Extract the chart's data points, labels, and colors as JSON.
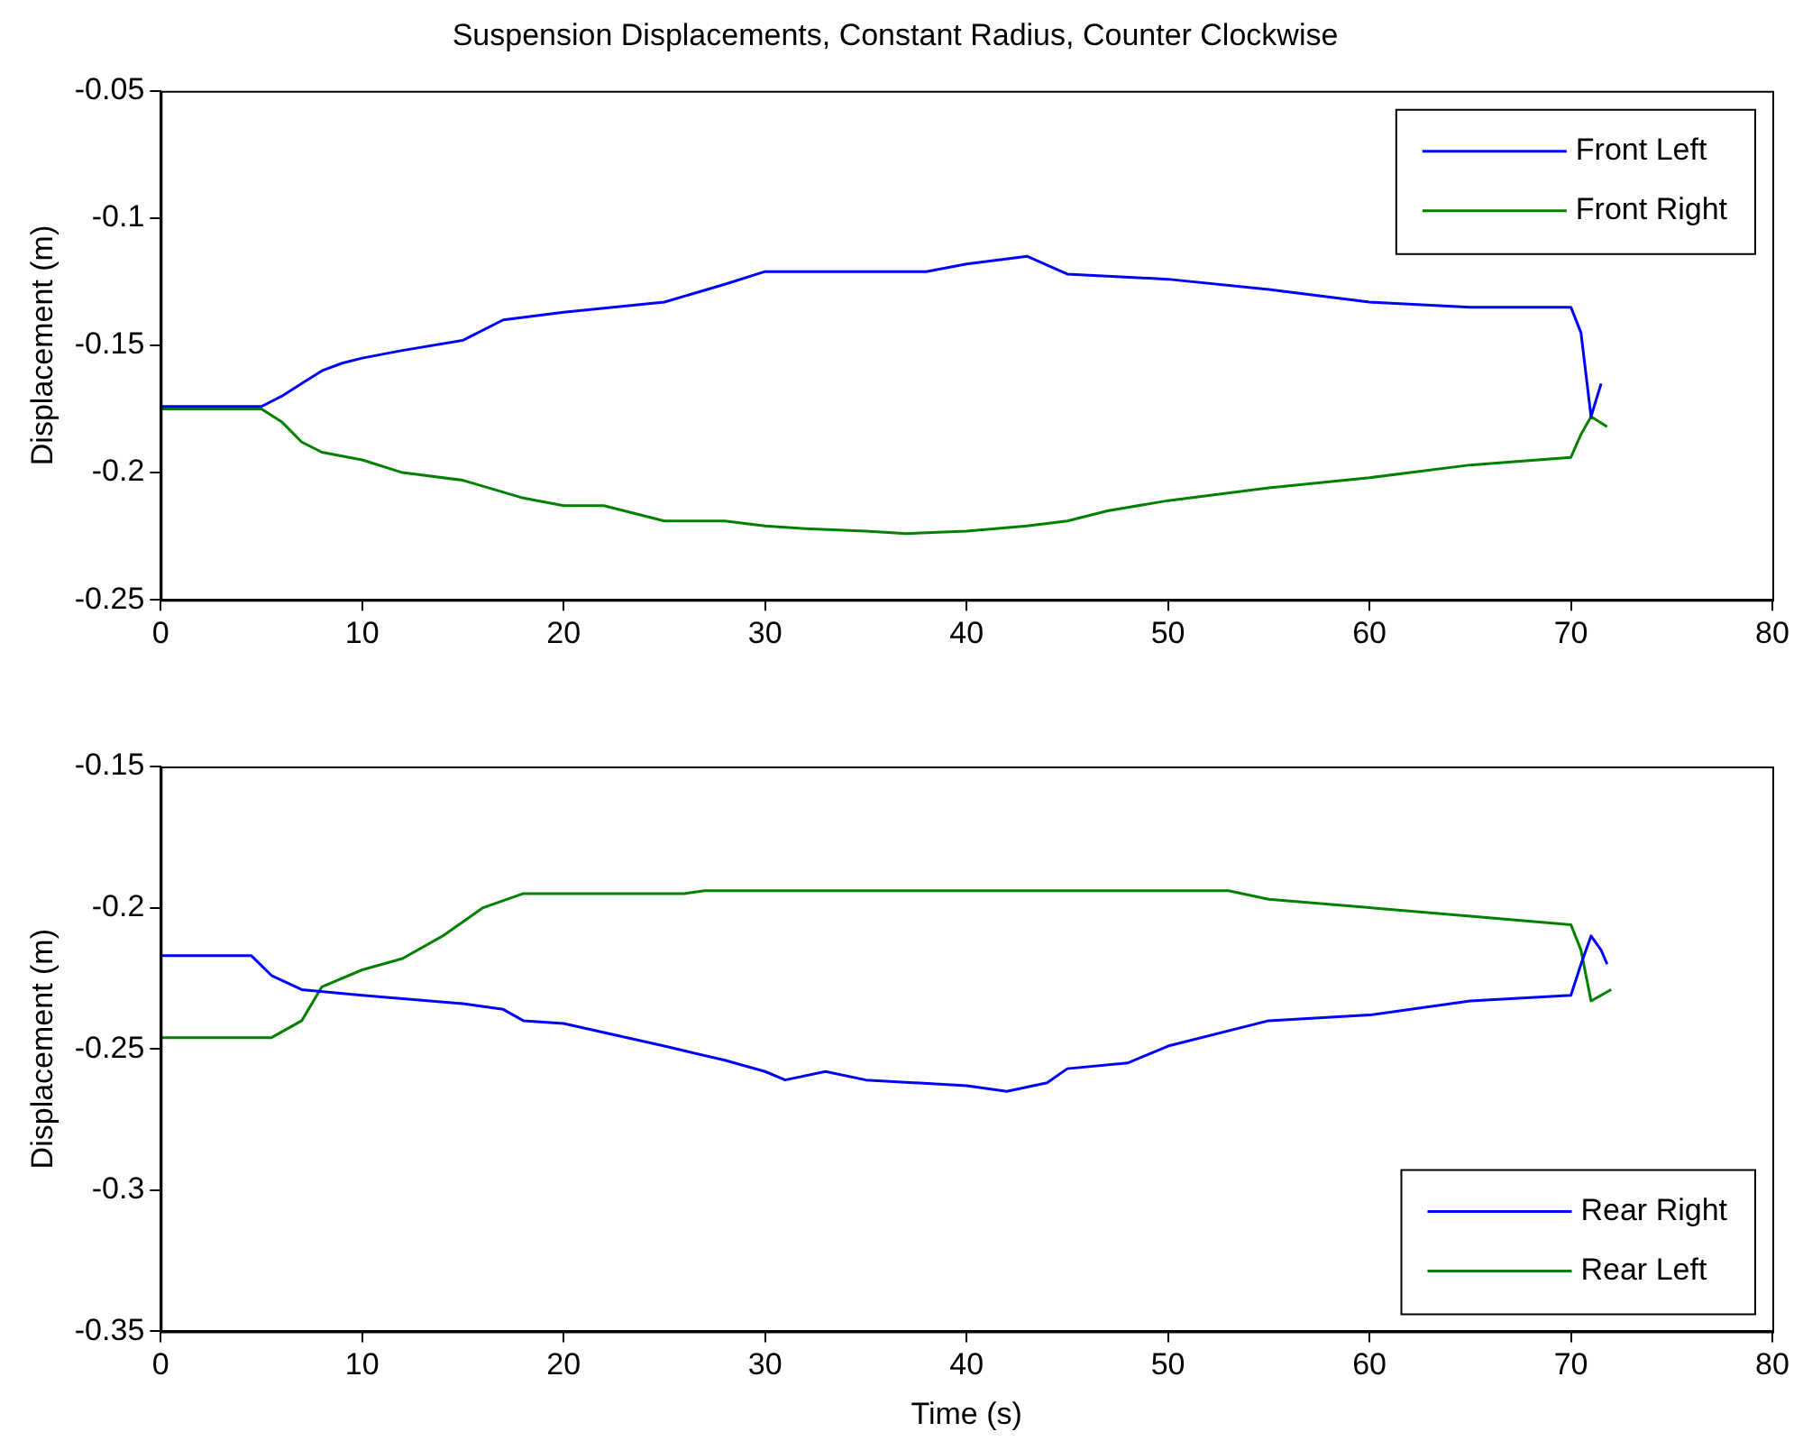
{
  "chart_data": [
    {
      "type": "line",
      "title": "Suspension Displacements, Constant Radius, Counter Clockwise",
      "ylabel": "Displacement (m)",
      "xlim": [
        0,
        80
      ],
      "xticks": [
        0,
        10,
        20,
        30,
        40,
        50,
        60,
        70,
        80
      ],
      "ylim": [
        -0.25,
        -0.05
      ],
      "yticks": [
        -0.25,
        -0.2,
        -0.15,
        -0.1,
        -0.05
      ],
      "grid": false,
      "legend": "top right",
      "series": [
        {
          "name": "Front Left",
          "color": "#0000ff",
          "x": [
            0,
            5,
            6,
            7,
            8,
            9,
            10,
            12,
            15,
            17,
            20,
            25,
            28,
            30,
            38,
            40,
            43,
            45,
            50,
            55,
            60,
            65,
            70,
            70.5,
            71,
            71.5
          ],
          "values": [
            -0.174,
            -0.174,
            -0.17,
            -0.165,
            -0.16,
            -0.157,
            -0.155,
            -0.152,
            -0.148,
            -0.14,
            -0.137,
            -0.133,
            -0.126,
            -0.121,
            -0.121,
            -0.118,
            -0.115,
            -0.122,
            -0.124,
            -0.128,
            -0.133,
            -0.135,
            -0.135,
            -0.145,
            -0.178,
            -0.165
          ]
        },
        {
          "name": "Front Right",
          "color": "#008000",
          "x": [
            0,
            5,
            6,
            7,
            8,
            10,
            12,
            15,
            18,
            20,
            22,
            25,
            28,
            30,
            32,
            35,
            37,
            40,
            43,
            45,
            47,
            50,
            55,
            60,
            65,
            70,
            70.5,
            71,
            71.8
          ],
          "values": [
            -0.175,
            -0.175,
            -0.18,
            -0.188,
            -0.192,
            -0.195,
            -0.2,
            -0.203,
            -0.21,
            -0.213,
            -0.213,
            -0.219,
            -0.219,
            -0.221,
            -0.222,
            -0.223,
            -0.224,
            -0.223,
            -0.221,
            -0.219,
            -0.215,
            -0.211,
            -0.206,
            -0.202,
            -0.197,
            -0.194,
            -0.185,
            -0.178,
            -0.182
          ]
        }
      ]
    },
    {
      "type": "line",
      "xlabel": "Time (s)",
      "ylabel": "Displacement (m)",
      "xlim": [
        0,
        80
      ],
      "xticks": [
        0,
        10,
        20,
        30,
        40,
        50,
        60,
        70,
        80
      ],
      "ylim": [
        -0.35,
        -0.15
      ],
      "yticks": [
        -0.35,
        -0.3,
        -0.25,
        -0.2,
        -0.15
      ],
      "grid": false,
      "legend": "bottom right",
      "series": [
        {
          "name": "Rear Right",
          "color": "#0000ff",
          "x": [
            0,
            4.5,
            5.5,
            7,
            10,
            15,
            17,
            18,
            20,
            25,
            28,
            30,
            31,
            33,
            35,
            40,
            42,
            44,
            45,
            48,
            50,
            55,
            60,
            65,
            70,
            70.5,
            71,
            71.5,
            71.8
          ],
          "values": [
            -0.217,
            -0.217,
            -0.224,
            -0.229,
            -0.231,
            -0.234,
            -0.236,
            -0.24,
            -0.241,
            -0.249,
            -0.254,
            -0.258,
            -0.261,
            -0.258,
            -0.261,
            -0.263,
            -0.265,
            -0.262,
            -0.257,
            -0.255,
            -0.249,
            -0.24,
            -0.238,
            -0.233,
            -0.231,
            -0.22,
            -0.21,
            -0.215,
            -0.22
          ]
        },
        {
          "name": "Rear Left",
          "color": "#008000",
          "x": [
            0,
            5.5,
            7,
            8,
            10,
            12,
            14,
            16,
            18,
            26,
            27,
            53,
            55,
            60,
            65,
            70,
            70.5,
            71,
            72
          ],
          "values": [
            -0.246,
            -0.246,
            -0.24,
            -0.228,
            -0.222,
            -0.218,
            -0.21,
            -0.2,
            -0.195,
            -0.195,
            -0.194,
            -0.194,
            -0.197,
            -0.2,
            -0.203,
            -0.206,
            -0.215,
            -0.233,
            -0.229
          ]
        }
      ]
    }
  ]
}
